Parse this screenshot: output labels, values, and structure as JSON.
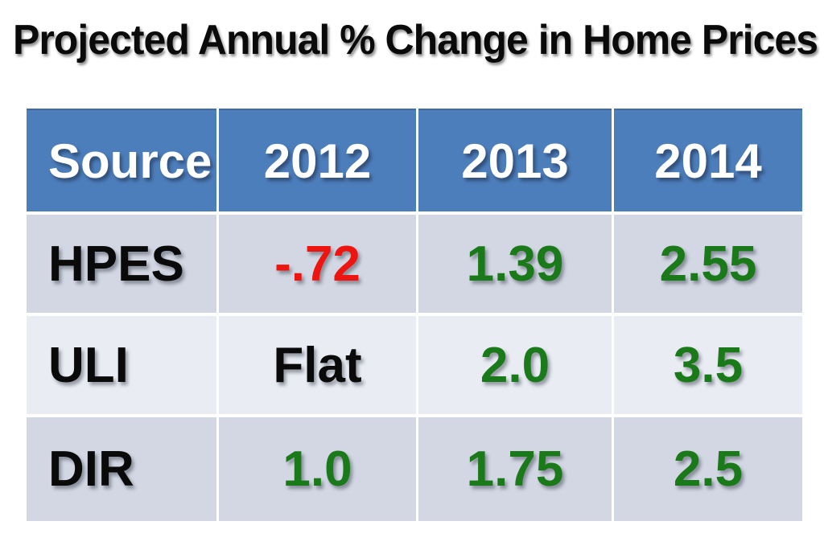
{
  "title": {
    "text": "Projected Annual % Change in Home Prices",
    "color": "#0a0a0a"
  },
  "table": {
    "colors": {
      "header_bg": "#4d7ebc",
      "header_text": "#ffffff",
      "row_odd_bg": "#d2d7e3",
      "row_even_bg": "#e9ecf3",
      "negative": "#ee1511",
      "positive": "#1a7a19",
      "neutral": "#0a0a0a"
    },
    "header": {
      "source": "Source",
      "y2012": "2012",
      "y2013": "2013",
      "y2014": "2014"
    },
    "rows": [
      {
        "source": "HPES",
        "values": [
          {
            "text": "-.72",
            "tone": "negative"
          },
          {
            "text": "1.39",
            "tone": "positive"
          },
          {
            "text": "2.55",
            "tone": "positive"
          }
        ]
      },
      {
        "source": "ULI",
        "values": [
          {
            "text": "Flat",
            "tone": "neutral"
          },
          {
            "text": "2.0",
            "tone": "positive"
          },
          {
            "text": "3.5",
            "tone": "positive"
          }
        ]
      },
      {
        "source": "DIR",
        "values": [
          {
            "text": "1.0",
            "tone": "positive"
          },
          {
            "text": "1.75",
            "tone": "positive"
          },
          {
            "text": "2.5",
            "tone": "positive"
          }
        ]
      }
    ]
  },
  "chart_data": {
    "type": "table",
    "title": "Projected Annual % Change in Home Prices",
    "columns": [
      "Source",
      "2012",
      "2013",
      "2014"
    ],
    "rows": [
      [
        "HPES",
        "-.72",
        "1.39",
        "2.55"
      ],
      [
        "ULI",
        "Flat",
        "2.0",
        "3.5"
      ],
      [
        "DIR",
        "1.0",
        "1.75",
        "2.5"
      ]
    ],
    "value_semantics": {
      "negative_values_color": "#ee1511",
      "positive_values_color": "#1a7a19",
      "neutral_values_color": "#0a0a0a"
    }
  }
}
